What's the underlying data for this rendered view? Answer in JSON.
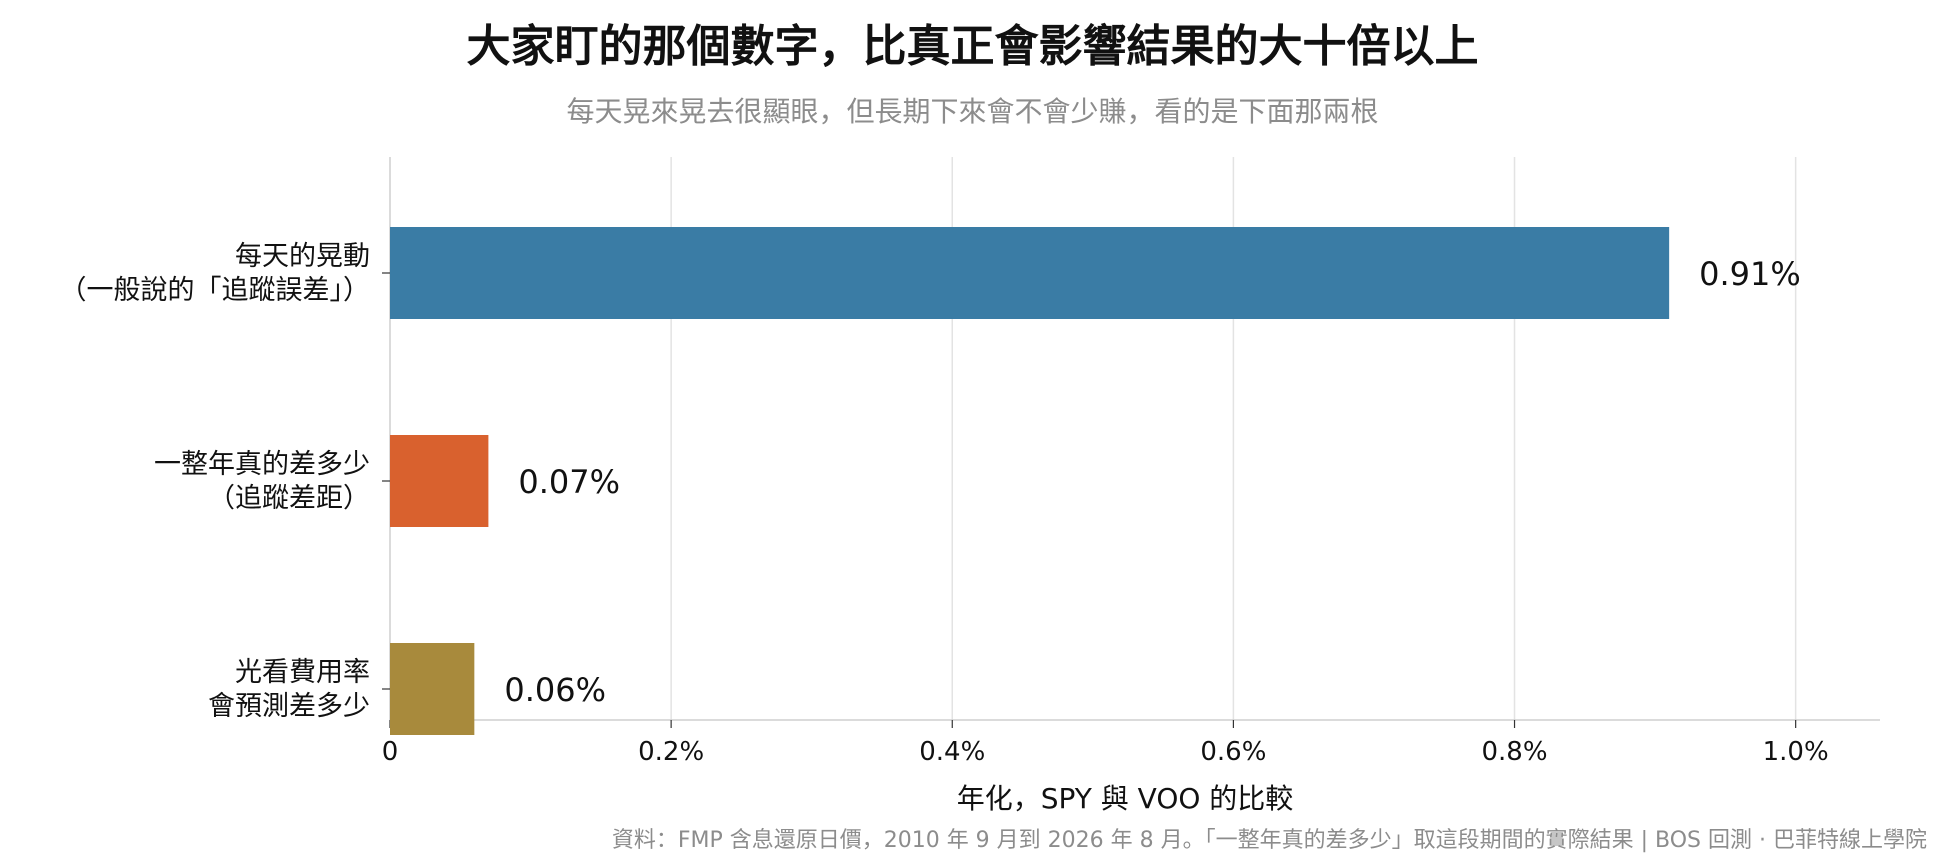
{
  "title": "大家盯的那個數字，比真正會影響結果的大十倍以上",
  "subtitle": "每天晃來晃去很顯眼，但長期下來會不會少賺，看的是下面那兩根",
  "source": "資料：FMP 含息還原日價，2010 年 9 月到 2026 年 8 月。「一整年真的差多少」取這段期間的實際結果 | BOS 回測 · 巴菲特線上學院",
  "chart_data": {
    "type": "bar",
    "orientation": "horizontal",
    "categories": [
      [
        "每天的晃動",
        "（一般說的「追蹤誤差」）"
      ],
      [
        "一整年真的差多少",
        "（追蹤差距）"
      ],
      [
        "光看費用率",
        "會預測差多少"
      ]
    ],
    "values": [
      0.91,
      0.07,
      0.06
    ],
    "value_labels": [
      "0.91%",
      "0.07%",
      "0.06%"
    ],
    "colors": [
      "#3a7ca5",
      "#d9612e",
      "#a88a3c"
    ],
    "xlabel": "年化，SPY 與 VOO 的比較",
    "xlim": [
      0,
      1.06
    ],
    "xticks": [
      0,
      0.2,
      0.4,
      0.6,
      0.8,
      1.0
    ],
    "xtick_labels": [
      "0",
      "0.2%",
      "0.4%",
      "0.6%",
      "0.8%",
      "1.0%"
    ],
    "grid": "vertical"
  }
}
